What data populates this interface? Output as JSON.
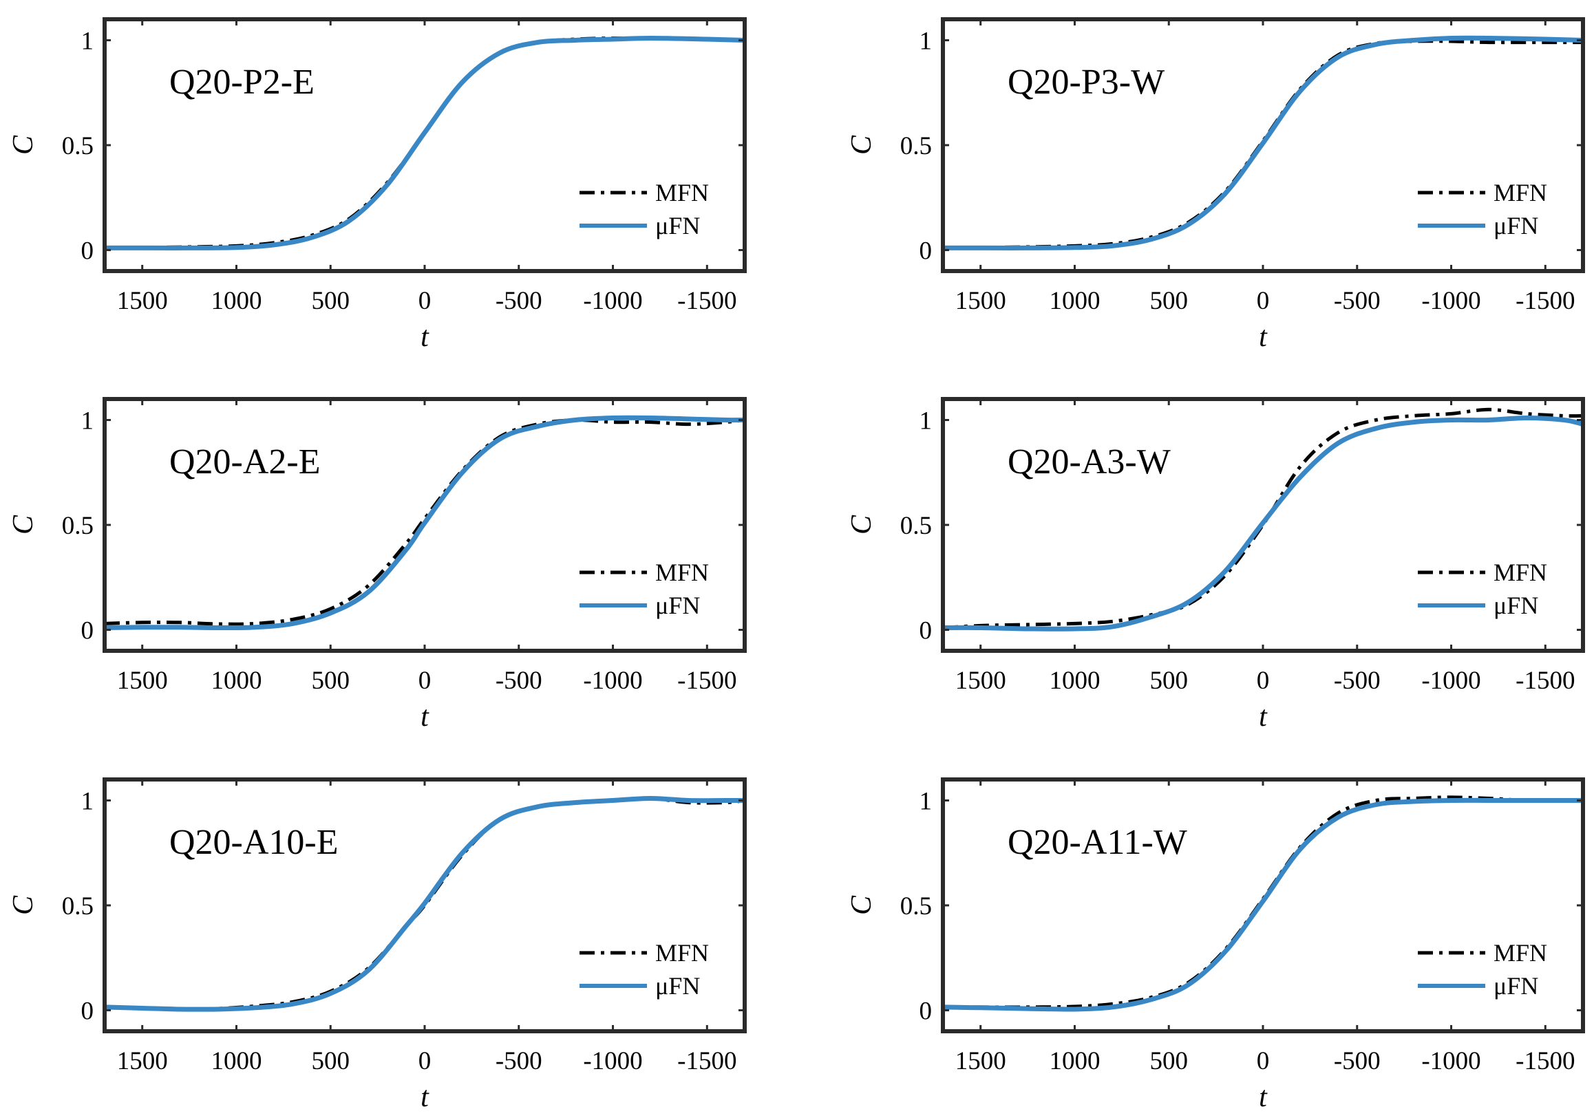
{
  "figure": {
    "colors": {
      "mfn": "#000000",
      "ufn": "#3a87c6",
      "frame": "#2b2b2b",
      "background": "#ffffff"
    }
  },
  "chart_data": [
    {
      "type": "line",
      "title": "Q20-P2-E",
      "xlabel": "t",
      "ylabel": "C",
      "xlim": [
        1700,
        -1700
      ],
      "ylim": [
        -0.1,
        1.1
      ],
      "xticks": [
        1500,
        1000,
        500,
        0,
        -500,
        -1000,
        -1500
      ],
      "xtick_labels": [
        "1500",
        "1000",
        "500",
        "0",
        "-500",
        "-1000",
        "-1500"
      ],
      "yticks": [
        0,
        0.5,
        1
      ],
      "ytick_labels": [
        "0",
        "0.5",
        "1"
      ],
      "legend": [
        "MFN",
        "μFN"
      ],
      "legend_position": "lower-right",
      "series": [
        {
          "name": "MFN",
          "style": "dashdot",
          "color": "#000000",
          "x": [
            1700,
            1500,
            1250,
            1000,
            800,
            600,
            400,
            200,
            0,
            -200,
            -400,
            -600,
            -800,
            -1000,
            -1200,
            -1500,
            -1700
          ],
          "y": [
            0.01,
            0.012,
            0.015,
            0.02,
            0.035,
            0.07,
            0.15,
            0.32,
            0.56,
            0.8,
            0.94,
            0.99,
            1.005,
            1.01,
            1.008,
            1.005,
            1.0
          ]
        },
        {
          "name": "μFN",
          "style": "solid",
          "color": "#3a87c6",
          "x": [
            1700,
            1500,
            1250,
            1000,
            800,
            600,
            400,
            200,
            0,
            -200,
            -400,
            -600,
            -800,
            -1000,
            -1200,
            -1500,
            -1700
          ],
          "y": [
            0.01,
            0.01,
            0.01,
            0.012,
            0.025,
            0.06,
            0.14,
            0.31,
            0.56,
            0.8,
            0.94,
            0.99,
            1.0,
            1.005,
            1.01,
            1.005,
            1.0
          ]
        }
      ]
    },
    {
      "type": "line",
      "title": "Q20-P3-W",
      "xlabel": "t",
      "ylabel": "C",
      "xlim": [
        1700,
        -1700
      ],
      "ylim": [
        -0.1,
        1.1
      ],
      "xticks": [
        1500,
        1000,
        500,
        0,
        -500,
        -1000,
        -1500
      ],
      "xtick_labels": [
        "1500",
        "1000",
        "500",
        "0",
        "-500",
        "-1000",
        "-1500"
      ],
      "yticks": [
        0,
        0.5,
        1
      ],
      "ytick_labels": [
        "0",
        "0.5",
        "1"
      ],
      "legend": [
        "MFN",
        "μFN"
      ],
      "legend_position": "lower-right",
      "series": [
        {
          "name": "MFN",
          "style": "dashdot",
          "color": "#000000",
          "x": [
            1700,
            1500,
            1250,
            1000,
            800,
            600,
            400,
            200,
            0,
            -200,
            -400,
            -600,
            -800,
            -1000,
            -1200,
            -1500,
            -1700
          ],
          "y": [
            0.01,
            0.012,
            0.015,
            0.02,
            0.03,
            0.06,
            0.13,
            0.28,
            0.52,
            0.77,
            0.93,
            0.985,
            0.995,
            0.995,
            0.99,
            0.99,
            0.99
          ]
        },
        {
          "name": "μFN",
          "style": "solid",
          "color": "#3a87c6",
          "x": [
            1700,
            1500,
            1250,
            1000,
            800,
            600,
            400,
            200,
            0,
            -200,
            -400,
            -600,
            -800,
            -1000,
            -1200,
            -1500,
            -1700
          ],
          "y": [
            0.01,
            0.01,
            0.01,
            0.012,
            0.02,
            0.05,
            0.12,
            0.27,
            0.51,
            0.76,
            0.92,
            0.98,
            1.0,
            1.01,
            1.01,
            1.005,
            1.0
          ]
        }
      ]
    },
    {
      "type": "line",
      "title": "Q20-A2-E",
      "xlabel": "t",
      "ylabel": "C",
      "xlim": [
        1700,
        -1700
      ],
      "ylim": [
        -0.1,
        1.1
      ],
      "xticks": [
        1500,
        1000,
        500,
        0,
        -500,
        -1000,
        -1500
      ],
      "xtick_labels": [
        "1500",
        "1000",
        "500",
        "0",
        "-500",
        "-1000",
        "-1500"
      ],
      "yticks": [
        0,
        0.5,
        1
      ],
      "ytick_labels": [
        "0",
        "0.5",
        "1"
      ],
      "legend": [
        "MFN",
        "μFN"
      ],
      "legend_position": "lower-right",
      "series": [
        {
          "name": "MFN",
          "style": "dashdot",
          "color": "#000000",
          "x": [
            1700,
            1500,
            1300,
            1100,
            900,
            700,
            500,
            300,
            100,
            0,
            -200,
            -400,
            -600,
            -800,
            -1000,
            -1200,
            -1400,
            -1600,
            -1700
          ],
          "y": [
            0.03,
            0.035,
            0.035,
            0.028,
            0.03,
            0.05,
            0.1,
            0.21,
            0.41,
            0.53,
            0.76,
            0.92,
            0.98,
            1.0,
            0.99,
            0.99,
            0.98,
            0.99,
            1.0
          ]
        },
        {
          "name": "μFN",
          "style": "solid",
          "color": "#3a87c6",
          "x": [
            1700,
            1500,
            1300,
            1100,
            900,
            700,
            500,
            300,
            100,
            0,
            -200,
            -400,
            -600,
            -800,
            -1000,
            -1200,
            -1400,
            -1600,
            -1700
          ],
          "y": [
            0.01,
            0.012,
            0.012,
            0.01,
            0.012,
            0.03,
            0.08,
            0.18,
            0.38,
            0.51,
            0.75,
            0.91,
            0.97,
            1.0,
            1.01,
            1.01,
            1.005,
            1.0,
            1.0
          ]
        }
      ]
    },
    {
      "type": "line",
      "title": "Q20-A3-W",
      "xlabel": "t",
      "ylabel": "C",
      "xlim": [
        1700,
        -1700
      ],
      "ylim": [
        -0.1,
        1.1
      ],
      "xticks": [
        1500,
        1000,
        500,
        0,
        -500,
        -1000,
        -1500
      ],
      "xtick_labels": [
        "1500",
        "1000",
        "500",
        "0",
        "-500",
        "-1000",
        "-1500"
      ],
      "yticks": [
        0,
        0.5,
        1
      ],
      "ytick_labels": [
        "0",
        "0.5",
        "1"
      ],
      "legend": [
        "MFN",
        "μFN"
      ],
      "legend_position": "lower-right",
      "series": [
        {
          "name": "MFN",
          "style": "dashdot",
          "color": "#000000",
          "x": [
            1700,
            1500,
            1250,
            1000,
            800,
            600,
            400,
            200,
            0,
            -200,
            -400,
            -600,
            -800,
            -1000,
            -1200,
            -1400,
            -1600,
            -1700
          ],
          "y": [
            0.01,
            0.02,
            0.025,
            0.03,
            0.04,
            0.07,
            0.12,
            0.26,
            0.5,
            0.78,
            0.94,
            1.0,
            1.02,
            1.03,
            1.05,
            1.03,
            1.02,
            1.02
          ]
        },
        {
          "name": "μFN",
          "style": "solid",
          "color": "#3a87c6",
          "x": [
            1700,
            1500,
            1250,
            1000,
            800,
            600,
            400,
            200,
            0,
            -200,
            -400,
            -600,
            -800,
            -1000,
            -1200,
            -1400,
            -1600,
            -1700
          ],
          "y": [
            0.01,
            0.01,
            0.005,
            0.005,
            0.015,
            0.06,
            0.13,
            0.28,
            0.51,
            0.73,
            0.89,
            0.96,
            0.99,
            1.0,
            1.0,
            1.01,
            1.0,
            0.98
          ]
        }
      ]
    },
    {
      "type": "line",
      "title": "Q20-A10-E",
      "xlabel": "t",
      "ylabel": "C",
      "xlim": [
        1700,
        -1700
      ],
      "ylim": [
        -0.1,
        1.1
      ],
      "xticks": [
        1500,
        1000,
        500,
        0,
        -500,
        -1000,
        -1500
      ],
      "xtick_labels": [
        "1500",
        "1000",
        "500",
        "0",
        "-500",
        "-1000",
        "-1500"
      ],
      "yticks": [
        0,
        0.5,
        1
      ],
      "ytick_labels": [
        "0",
        "0.5",
        "1"
      ],
      "legend": [
        "MFN",
        "μFN"
      ],
      "legend_position": "lower-right",
      "series": [
        {
          "name": "MFN",
          "style": "dashdot",
          "color": "#000000",
          "x": [
            1700,
            1500,
            1300,
            1100,
            900,
            700,
            500,
            300,
            100,
            0,
            -200,
            -400,
            -600,
            -800,
            -1000,
            -1200,
            -1400,
            -1600,
            -1700
          ],
          "y": [
            0.015,
            0.01,
            0.005,
            0.008,
            0.02,
            0.04,
            0.09,
            0.2,
            0.4,
            0.5,
            0.74,
            0.91,
            0.97,
            0.99,
            1.0,
            1.01,
            0.99,
            0.99,
            1.0
          ]
        },
        {
          "name": "μFN",
          "style": "solid",
          "color": "#3a87c6",
          "x": [
            1700,
            1500,
            1300,
            1100,
            900,
            700,
            500,
            300,
            100,
            0,
            -200,
            -400,
            -600,
            -800,
            -1000,
            -1200,
            -1400,
            -1600,
            -1700
          ],
          "y": [
            0.015,
            0.01,
            0.005,
            0.005,
            0.012,
            0.03,
            0.08,
            0.19,
            0.4,
            0.51,
            0.75,
            0.91,
            0.97,
            0.99,
            1.0,
            1.01,
            1.0,
            1.0,
            1.0
          ]
        }
      ]
    },
    {
      "type": "line",
      "title": "Q20-A11-W",
      "xlabel": "t",
      "ylabel": "C",
      "xlim": [
        1700,
        -1700
      ],
      "ylim": [
        -0.1,
        1.1
      ],
      "xticks": [
        1500,
        1000,
        500,
        0,
        -500,
        -1000,
        -1500
      ],
      "xtick_labels": [
        "1500",
        "1000",
        "500",
        "0",
        "-500",
        "-1000",
        "-1500"
      ],
      "yticks": [
        0,
        0.5,
        1
      ],
      "ytick_labels": [
        "0",
        "0.5",
        "1"
      ],
      "legend": [
        "MFN",
        "μFN"
      ],
      "legend_position": "lower-right",
      "series": [
        {
          "name": "MFN",
          "style": "dashdot",
          "color": "#000000",
          "x": [
            1700,
            1500,
            1250,
            1000,
            800,
            600,
            400,
            200,
            0,
            -200,
            -400,
            -600,
            -800,
            -1000,
            -1200,
            -1400,
            -1600,
            -1700
          ],
          "y": [
            0.015,
            0.015,
            0.015,
            0.018,
            0.03,
            0.06,
            0.13,
            0.29,
            0.53,
            0.78,
            0.94,
            1.0,
            1.01,
            1.015,
            1.01,
            1.0,
            1.0,
            1.0
          ]
        },
        {
          "name": "μFN",
          "style": "solid",
          "color": "#3a87c6",
          "x": [
            1700,
            1500,
            1250,
            1000,
            800,
            600,
            400,
            200,
            0,
            -200,
            -400,
            -600,
            -800,
            -1000,
            -1200,
            -1400,
            -1600,
            -1700
          ],
          "y": [
            0.015,
            0.012,
            0.008,
            0.005,
            0.015,
            0.05,
            0.12,
            0.28,
            0.52,
            0.77,
            0.92,
            0.98,
            0.995,
            1.0,
            1.0,
            1.0,
            1.0,
            1.0
          ]
        }
      ]
    }
  ]
}
